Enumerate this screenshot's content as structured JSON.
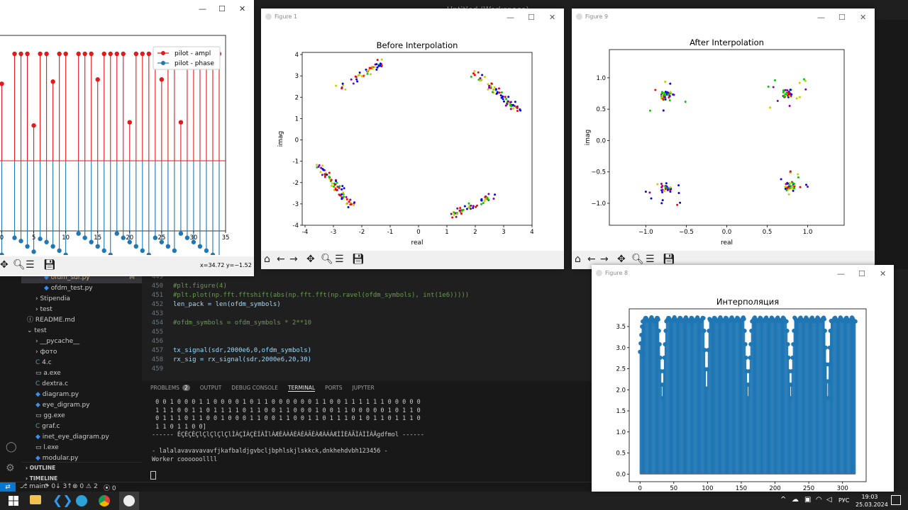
{
  "vscode": {
    "title": "Untitled (Workspace)",
    "explorer_items": [
      {
        "label": "ofdm_sdr.py",
        "badge": "M",
        "indent": 2,
        "icon": "python-icon"
      },
      {
        "label": "ofdm_test.py",
        "badge": "",
        "indent": 2,
        "icon": "python-icon"
      },
      {
        "label": "Stipendia",
        "badge": "",
        "indent": 1,
        "icon": "chevron-right-icon"
      },
      {
        "label": "test",
        "badge": "",
        "indent": 1,
        "icon": "chevron-right-icon"
      },
      {
        "label": "README.md",
        "badge": "",
        "indent": 0,
        "icon": "info-icon"
      },
      {
        "label": "test",
        "badge": "",
        "indent": 0,
        "icon": "chevron-down-icon"
      },
      {
        "label": "__pycache__",
        "badge": "",
        "indent": 1,
        "icon": "chevron-right-icon"
      },
      {
        "label": "фото",
        "badge": "",
        "indent": 1,
        "icon": "chevron-right-icon"
      },
      {
        "label": "4.c",
        "badge": "",
        "indent": 1,
        "icon": "c-file-icon"
      },
      {
        "label": "a.exe",
        "badge": "",
        "indent": 1,
        "icon": "exe-file-icon"
      },
      {
        "label": "dextra.c",
        "badge": "",
        "indent": 1,
        "icon": "c-file-icon"
      },
      {
        "label": "diagram.py",
        "badge": "",
        "indent": 1,
        "icon": "python-icon"
      },
      {
        "label": "eye_digram.py",
        "badge": "",
        "indent": 1,
        "icon": "python-icon"
      },
      {
        "label": "gg.exe",
        "badge": "",
        "indent": 1,
        "icon": "exe-file-icon"
      },
      {
        "label": "graf.c",
        "badge": "",
        "indent": 1,
        "icon": "c-file-icon"
      },
      {
        "label": "inet_eye_diagram.py",
        "badge": "",
        "indent": 1,
        "icon": "python-icon"
      },
      {
        "label": "l.exe",
        "badge": "",
        "indent": 1,
        "icon": "exe-file-icon"
      },
      {
        "label": "modular.py",
        "badge": "",
        "indent": 1,
        "icon": "python-icon"
      }
    ],
    "outline_label": "OUTLINE",
    "timeline_label": "TIMELINE",
    "code_lines": [
      {
        "num": "449",
        "text": "",
        "type": "plain"
      },
      {
        "num": "450",
        "text": "#plt.figure(4)",
        "type": "cmt"
      },
      {
        "num": "451",
        "text": "#plt.plot(np.fft.fftshift(abs(np.fft.fft(np.ravel(ofdm_symbols), int(1e6)))))",
        "type": "cmt"
      },
      {
        "num": "452",
        "text": "len_pack = len(ofdm_symbols)",
        "type": "code"
      },
      {
        "num": "453",
        "text": "",
        "type": "plain"
      },
      {
        "num": "454",
        "text": "#ofdm_symbols = ofdm_symbols * 2**10",
        "type": "cmt"
      },
      {
        "num": "455",
        "text": "",
        "type": "plain"
      },
      {
        "num": "456",
        "text": "",
        "type": "plain"
      },
      {
        "num": "457",
        "text": "tx_signal(sdr,2000e6,0,ofdm_symbols)",
        "type": "code"
      },
      {
        "num": "458",
        "text": "rx_sig = rx_signal(sdr,2000e6,20,30)",
        "type": "code"
      },
      {
        "num": "459",
        "text": "",
        "type": "plain"
      }
    ],
    "panel_tabs": [
      "PROBLEMS",
      "OUTPUT",
      "DEBUG CONSOLE",
      "TERMINAL",
      "PORTS",
      "JUPYTER"
    ],
    "problems_count": "2",
    "terminal_lines": [
      " 0 0 1 0 0 0 1 1 0 0 0 0 1 0 1 1 0 0 0 0 0 0 1 1 0 0 1 1 1 1 1 1 0 0 0 0 0",
      " 1 1 1 0 0 1 1 0 1 1 1 1 0 1 1 0 0 1 1 0 0 0 1 0 0 1 1 0 0 0 0 0 1 0 1 1 0",
      " 0 1 1 1 0 1 1 0 0 1 0 0 0 1 1 0 0 1 1 0 0 1 1 0 1 1 1 0 1 0 1 1 0 1 1 1 0",
      " 1 1 0 1 1 0 0]",
      "------ ÉÇÈÇÈÇlÇlÇlÇlÇlÌÀÇÌÀÇÈÍÀÎlÀÆÈÀÀÀÈÀÈÀÃÈÀÆÀÁÀÆÌÌÈÀÃÌÀÌÌÀÄgdfmol ------",
      "",
      "- lalalavavavavavfjkafbaldjgvbcljbphlskjlskkck,dnkhehdvbh123456 -",
      "Worker coooooollll"
    ],
    "status": {
      "branch": "main*",
      "sync": "0↓ 3↑",
      "errors": "0",
      "warnings": "2",
      "ports": "0"
    }
  },
  "taskbar": {
    "lang": "РУС",
    "time": "19:03",
    "date": "25.03.2024"
  },
  "fig_stem": {
    "status_text": "x=34.72 y=−1.52",
    "chart_data": {
      "type": "stem",
      "xlim": [
        -0.5,
        35
      ],
      "x_ticks": [
        "0",
        "5",
        "10",
        "15",
        "20",
        "25",
        "30",
        "35"
      ],
      "legend": [
        "pilot - ampl",
        "pilot - phase"
      ],
      "legend_position": "top-right",
      "colors": {
        "ampl": "#e31a1c",
        "phase": "#1f77b4"
      },
      "series": [
        {
          "name": "pilot - ampl",
          "x": [
            0,
            2,
            3,
            4,
            5,
            6,
            7,
            8,
            9,
            10,
            12,
            13,
            14,
            15,
            16,
            17,
            18,
            19,
            20,
            21,
            22,
            23,
            24,
            25,
            26,
            27,
            28,
            29,
            30,
            31,
            32,
            33,
            34
          ],
          "values": [
            0.72,
            1.0,
            1.0,
            1.0,
            0.33,
            1.0,
            1.0,
            0.74,
            1.0,
            1.0,
            1.0,
            1.0,
            1.0,
            0.76,
            1.0,
            1.0,
            1.0,
            1.0,
            0.36,
            1.0,
            1.0,
            1.0,
            1.0,
            0.76,
            1.0,
            1.0,
            0.36,
            1.0,
            1.0,
            1.0,
            1.0,
            1.0,
            1.0
          ]
        },
        {
          "name": "pilot - phase",
          "x": [
            0,
            2,
            3,
            4,
            5,
            6,
            7,
            8,
            9,
            10,
            12,
            13,
            14,
            15,
            16,
            17,
            18,
            19,
            20,
            21,
            22,
            23,
            24,
            25,
            26,
            27,
            28,
            29,
            30,
            31,
            32,
            33,
            34
          ],
          "values": [
            -0.88,
            -0.72,
            -0.75,
            -0.8,
            -0.85,
            -0.73,
            -0.76,
            -0.8,
            -0.84,
            -0.88,
            -0.68,
            -0.72,
            -0.76,
            -0.8,
            -0.84,
            -0.88,
            -0.68,
            -0.72,
            -0.76,
            -0.8,
            -0.84,
            -0.88,
            -0.72,
            -0.76,
            -0.8,
            -0.84,
            -0.68,
            -0.72,
            -0.76,
            -0.8,
            -0.84,
            -0.88,
            -0.9
          ]
        }
      ]
    }
  },
  "fig_before": {
    "window_title": "Figure 1",
    "chart_data": {
      "type": "scatter",
      "title": "Before Interpolation",
      "xlabel": "real",
      "ylabel": "imag",
      "xlim": [
        -4.1,
        4.0
      ],
      "ylim": [
        -4.0,
        4.1
      ],
      "x_ticks": [
        -4,
        -3,
        -2,
        -1,
        0,
        1,
        2,
        3,
        4
      ],
      "y_ticks": [
        -4,
        -3,
        -2,
        -1,
        0,
        1,
        2,
        3,
        4
      ],
      "colors": [
        "#ff0000",
        "#0000ff",
        "#00cc00",
        "#cccc00",
        "#8800aa"
      ],
      "clusters": [
        {
          "arc": "top-right",
          "from": [
            2.0,
            3.1
          ],
          "to": [
            3.5,
            1.4
          ],
          "count": 70
        },
        {
          "arc": "top-left",
          "from": [
            -2.8,
            2.4
          ],
          "to": [
            -1.2,
            3.7
          ],
          "count": 45
        },
        {
          "arc": "bottom-left",
          "from": [
            -3.6,
            -1.1
          ],
          "to": [
            -2.3,
            -3.1
          ],
          "count": 75
        },
        {
          "arc": "bottom-right",
          "from": [
            1.1,
            -3.6
          ],
          "to": [
            2.6,
            -2.6
          ],
          "count": 50
        }
      ]
    }
  },
  "fig_after": {
    "window_title": "Figure 9",
    "chart_data": {
      "type": "scatter",
      "title": "After Interpolation",
      "xlabel": "real",
      "ylabel": "imag",
      "xlim": [
        -1.45,
        1.45
      ],
      "ylim": [
        -1.35,
        1.45
      ],
      "x_ticks": [
        -1.0,
        -0.5,
        0.0,
        0.5,
        1.0
      ],
      "y_ticks": [
        -1.0,
        -0.5,
        0.0,
        0.5,
        1.0
      ],
      "x_tick_labels": [
        "−1.0",
        "−0.5",
        "0.0",
        "0.5",
        "1.0"
      ],
      "y_tick_labels": [
        "−1.0",
        "−0.5",
        "0.0",
        "0.5",
        "1.0"
      ],
      "colors": [
        "#ff0000",
        "#0000ff",
        "#00cc00",
        "#cccc00",
        "#8800aa"
      ],
      "clusters": [
        {
          "center": [
            -0.75,
            0.72
          ],
          "count": 45
        },
        {
          "center": [
            0.75,
            0.75
          ],
          "count": 40
        },
        {
          "center": [
            -0.75,
            -0.78
          ],
          "count": 40
        },
        {
          "center": [
            0.78,
            -0.72
          ],
          "count": 45
        }
      ]
    }
  },
  "fig_interp": {
    "window_title": "Figure 8",
    "chart_data": {
      "type": "stem",
      "title": "Интерполяция",
      "xlim": [
        -16,
        335
      ],
      "ylim": [
        -0.18,
        3.92
      ],
      "x_ticks": [
        0,
        50,
        100,
        150,
        200,
        250,
        300
      ],
      "y_ticks": [
        0.0,
        0.5,
        1.0,
        1.5,
        2.0,
        2.5,
        3.0,
        3.5
      ],
      "y_tick_labels": [
        "0.0",
        "0.5",
        "1.0",
        "1.5",
        "2.0",
        "2.5",
        "3.0",
        "3.5"
      ],
      "color": "#1f77b4",
      "baseline_color": "#d62728",
      "n_points": 320,
      "peak": 3.72
    }
  }
}
